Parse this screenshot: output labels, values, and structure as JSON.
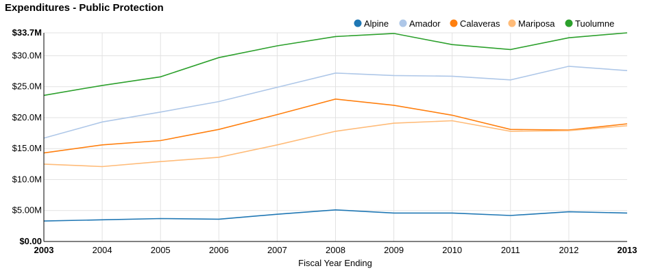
{
  "chart_data": {
    "type": "line",
    "title": "Expenditures - Public Protection",
    "xlabel": "Fiscal Year Ending",
    "ylabel": "",
    "x": [
      2003,
      2004,
      2005,
      2006,
      2007,
      2008,
      2009,
      2010,
      2011,
      2012,
      2013
    ],
    "x_tick_labels": [
      "2003",
      "2004",
      "2005",
      "2006",
      "2007",
      "2008",
      "2009",
      "2010",
      "2011",
      "2012",
      "2013"
    ],
    "ylim": [
      0,
      33.7
    ],
    "y_unit": "millions of dollars",
    "y_ticks": [
      0,
      5,
      10,
      15,
      20,
      25,
      30,
      33.7
    ],
    "y_tick_labels": [
      "$0.00",
      "$5.00M",
      "$10.0M",
      "$15.0M",
      "$20.0M",
      "$25.0M",
      "$30.0M",
      "$33.7M"
    ],
    "grid": true,
    "legend_position": "top-right",
    "series": [
      {
        "name": "Alpine",
        "color": "#1f77b4",
        "values": [
          3.3,
          3.5,
          3.7,
          3.6,
          4.4,
          5.1,
          4.6,
          4.6,
          4.2,
          4.8,
          4.6
        ]
      },
      {
        "name": "Amador",
        "color": "#aec7e8",
        "values": [
          16.7,
          19.3,
          20.9,
          22.6,
          24.9,
          27.2,
          26.8,
          26.7,
          26.1,
          28.3,
          27.6
        ]
      },
      {
        "name": "Calaveras",
        "color": "#ff7f0e",
        "values": [
          14.3,
          15.6,
          16.3,
          18.1,
          20.5,
          23.0,
          22.0,
          20.4,
          18.1,
          18.0,
          19.0
        ]
      },
      {
        "name": "Mariposa",
        "color": "#ffbb78",
        "values": [
          12.5,
          12.1,
          12.9,
          13.6,
          15.6,
          17.8,
          19.1,
          19.5,
          17.8,
          17.9,
          18.7
        ]
      },
      {
        "name": "Tuolumne",
        "color": "#2ca02c",
        "values": [
          23.6,
          25.2,
          26.6,
          29.7,
          31.6,
          33.1,
          33.6,
          31.8,
          31.0,
          32.9,
          33.7
        ]
      }
    ]
  }
}
